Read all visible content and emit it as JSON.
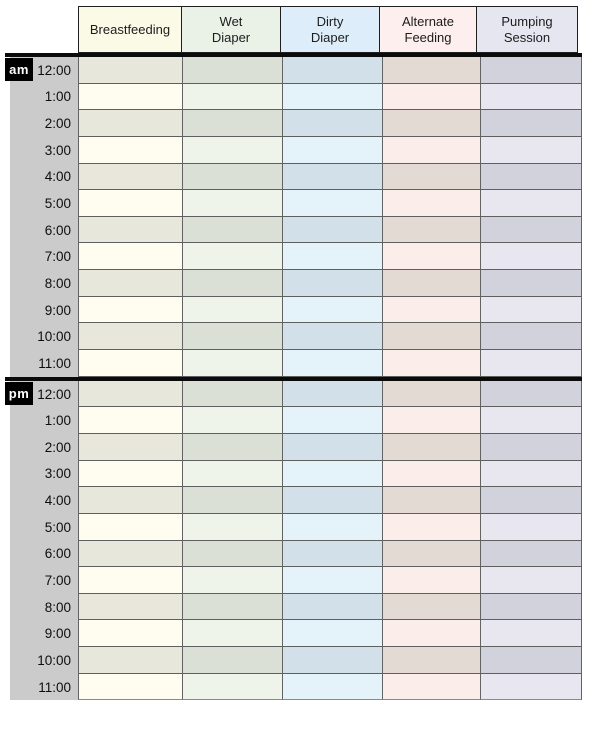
{
  "table": {
    "columns": [
      {
        "label": "Breastfeeding",
        "header_bg": "#fafae6",
        "row_light": "#fffdf0",
        "row_dark": "#e8e7db"
      },
      {
        "label": "Wet\nDiaper",
        "header_bg": "#eaf1e7",
        "row_light": "#eff4eb",
        "row_dark": "#dae0d5"
      },
      {
        "label": "Dirty\nDiaper",
        "header_bg": "#ddeefa",
        "row_light": "#e4f2fa",
        "row_dark": "#d2e1e9"
      },
      {
        "label": "Alternate\nFeeding",
        "header_bg": "#fcefee",
        "row_light": "#fbeeea",
        "row_dark": "#e3dad4"
      },
      {
        "label": "Pumping\nSession",
        "header_bg": "#e6e6f1",
        "row_light": "#e8e7f0",
        "row_dark": "#d2d2dc"
      }
    ],
    "sections": [
      {
        "label": "am",
        "times": [
          "12:00",
          "1:00",
          "2:00",
          "3:00",
          "4:00",
          "5:00",
          "6:00",
          "7:00",
          "8:00",
          "9:00",
          "10:00",
          "11:00"
        ]
      },
      {
        "label": "pm",
        "times": [
          "12:00",
          "1:00",
          "2:00",
          "3:00",
          "4:00",
          "5:00",
          "6:00",
          "7:00",
          "8:00",
          "9:00",
          "10:00",
          "11:00"
        ]
      }
    ],
    "colors": {
      "time_column_bg": "#cbcbcb",
      "section_tab_bg": "#000000",
      "section_tab_fg": "#ffffff",
      "divider": "#0b0b0b",
      "grid_border": "#5f5f5f",
      "header_border": "#1f1f1f",
      "text": "#111111"
    }
  }
}
